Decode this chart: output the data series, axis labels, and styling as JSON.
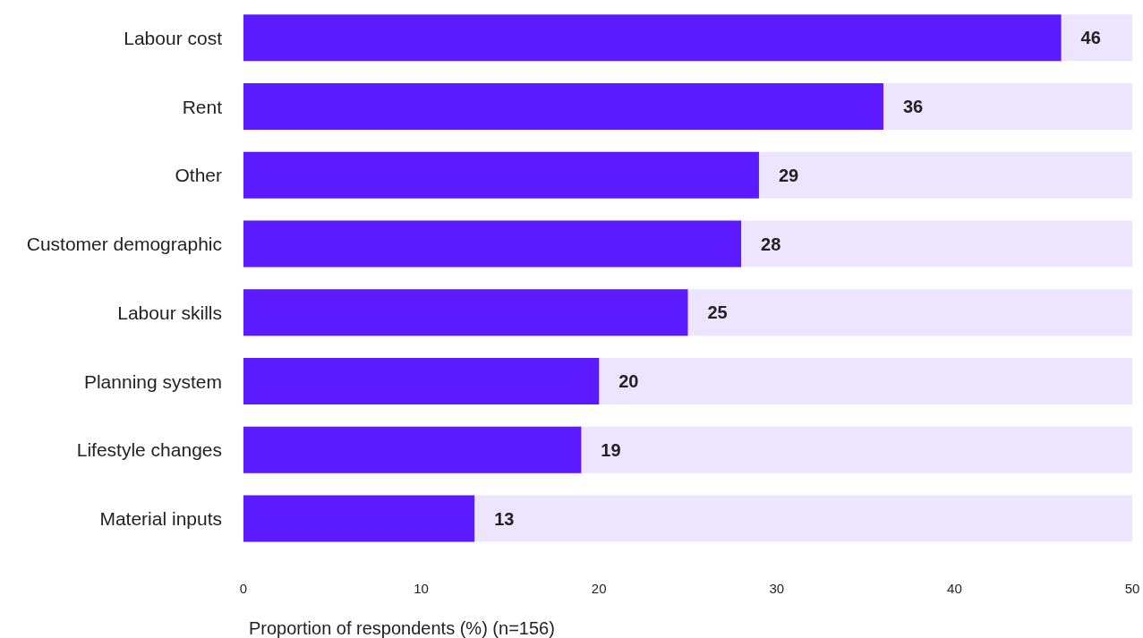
{
  "chart_data": {
    "type": "bar",
    "orientation": "horizontal",
    "xlabel": "Proportion of respondents (%) (n=156)",
    "categories": [
      "Labour cost",
      "Rent",
      "Other",
      "Customer demographic",
      "Labour skills",
      "Planning system",
      "Lifestyle changes",
      "Material inputs"
    ],
    "values": [
      46,
      36,
      29,
      28,
      25,
      20,
      19,
      13
    ],
    "color": "#5b1aff",
    "xlim": [
      0,
      50
    ],
    "xticks": [
      0,
      10,
      20,
      30,
      40,
      50
    ],
    "grid": false,
    "data_labels": true
  }
}
